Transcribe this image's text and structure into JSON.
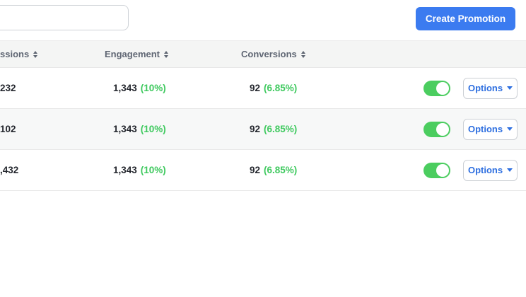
{
  "toolbar": {
    "search": {
      "value": "",
      "placeholder": ""
    },
    "create_button": {
      "label": "Create Promotion",
      "bg": "#3b7bf0",
      "text_color": "#ffffff"
    }
  },
  "table": {
    "header": {
      "bg": "#f4f5f4",
      "text_color": "#5f6673",
      "columns": [
        {
          "id": "impressions",
          "label": "ssions",
          "sortable": true
        },
        {
          "id": "engagement",
          "label": "Engagement",
          "sortable": true
        },
        {
          "id": "conversions",
          "label": "Conversions",
          "sortable": true
        }
      ]
    },
    "rows": [
      {
        "impressions": "232",
        "engagement_value": "1,343",
        "engagement_pct": "(10%)",
        "conversions_value": "92",
        "conversions_pct": "(6.85%)",
        "toggle_on": true,
        "options_label": "Options"
      },
      {
        "impressions": "102",
        "engagement_value": "1,343",
        "engagement_pct": "(10%)",
        "conversions_value": "92",
        "conversions_pct": "(6.85%)",
        "toggle_on": true,
        "options_label": "Options"
      },
      {
        "impressions": ",432",
        "engagement_value": "1,343",
        "engagement_pct": "(10%)",
        "conversions_value": "92",
        "conversions_pct": "(6.85%)",
        "toggle_on": true,
        "options_label": "Options"
      }
    ],
    "colors": {
      "positive_green": "#3ec95e",
      "toggle_on_green": "#4bcd5f",
      "value_text": "#24272e",
      "options_blue": "#2e6fe0",
      "divider": "#e9e9e9",
      "row_alt_bg": "#f7f8f8"
    }
  }
}
